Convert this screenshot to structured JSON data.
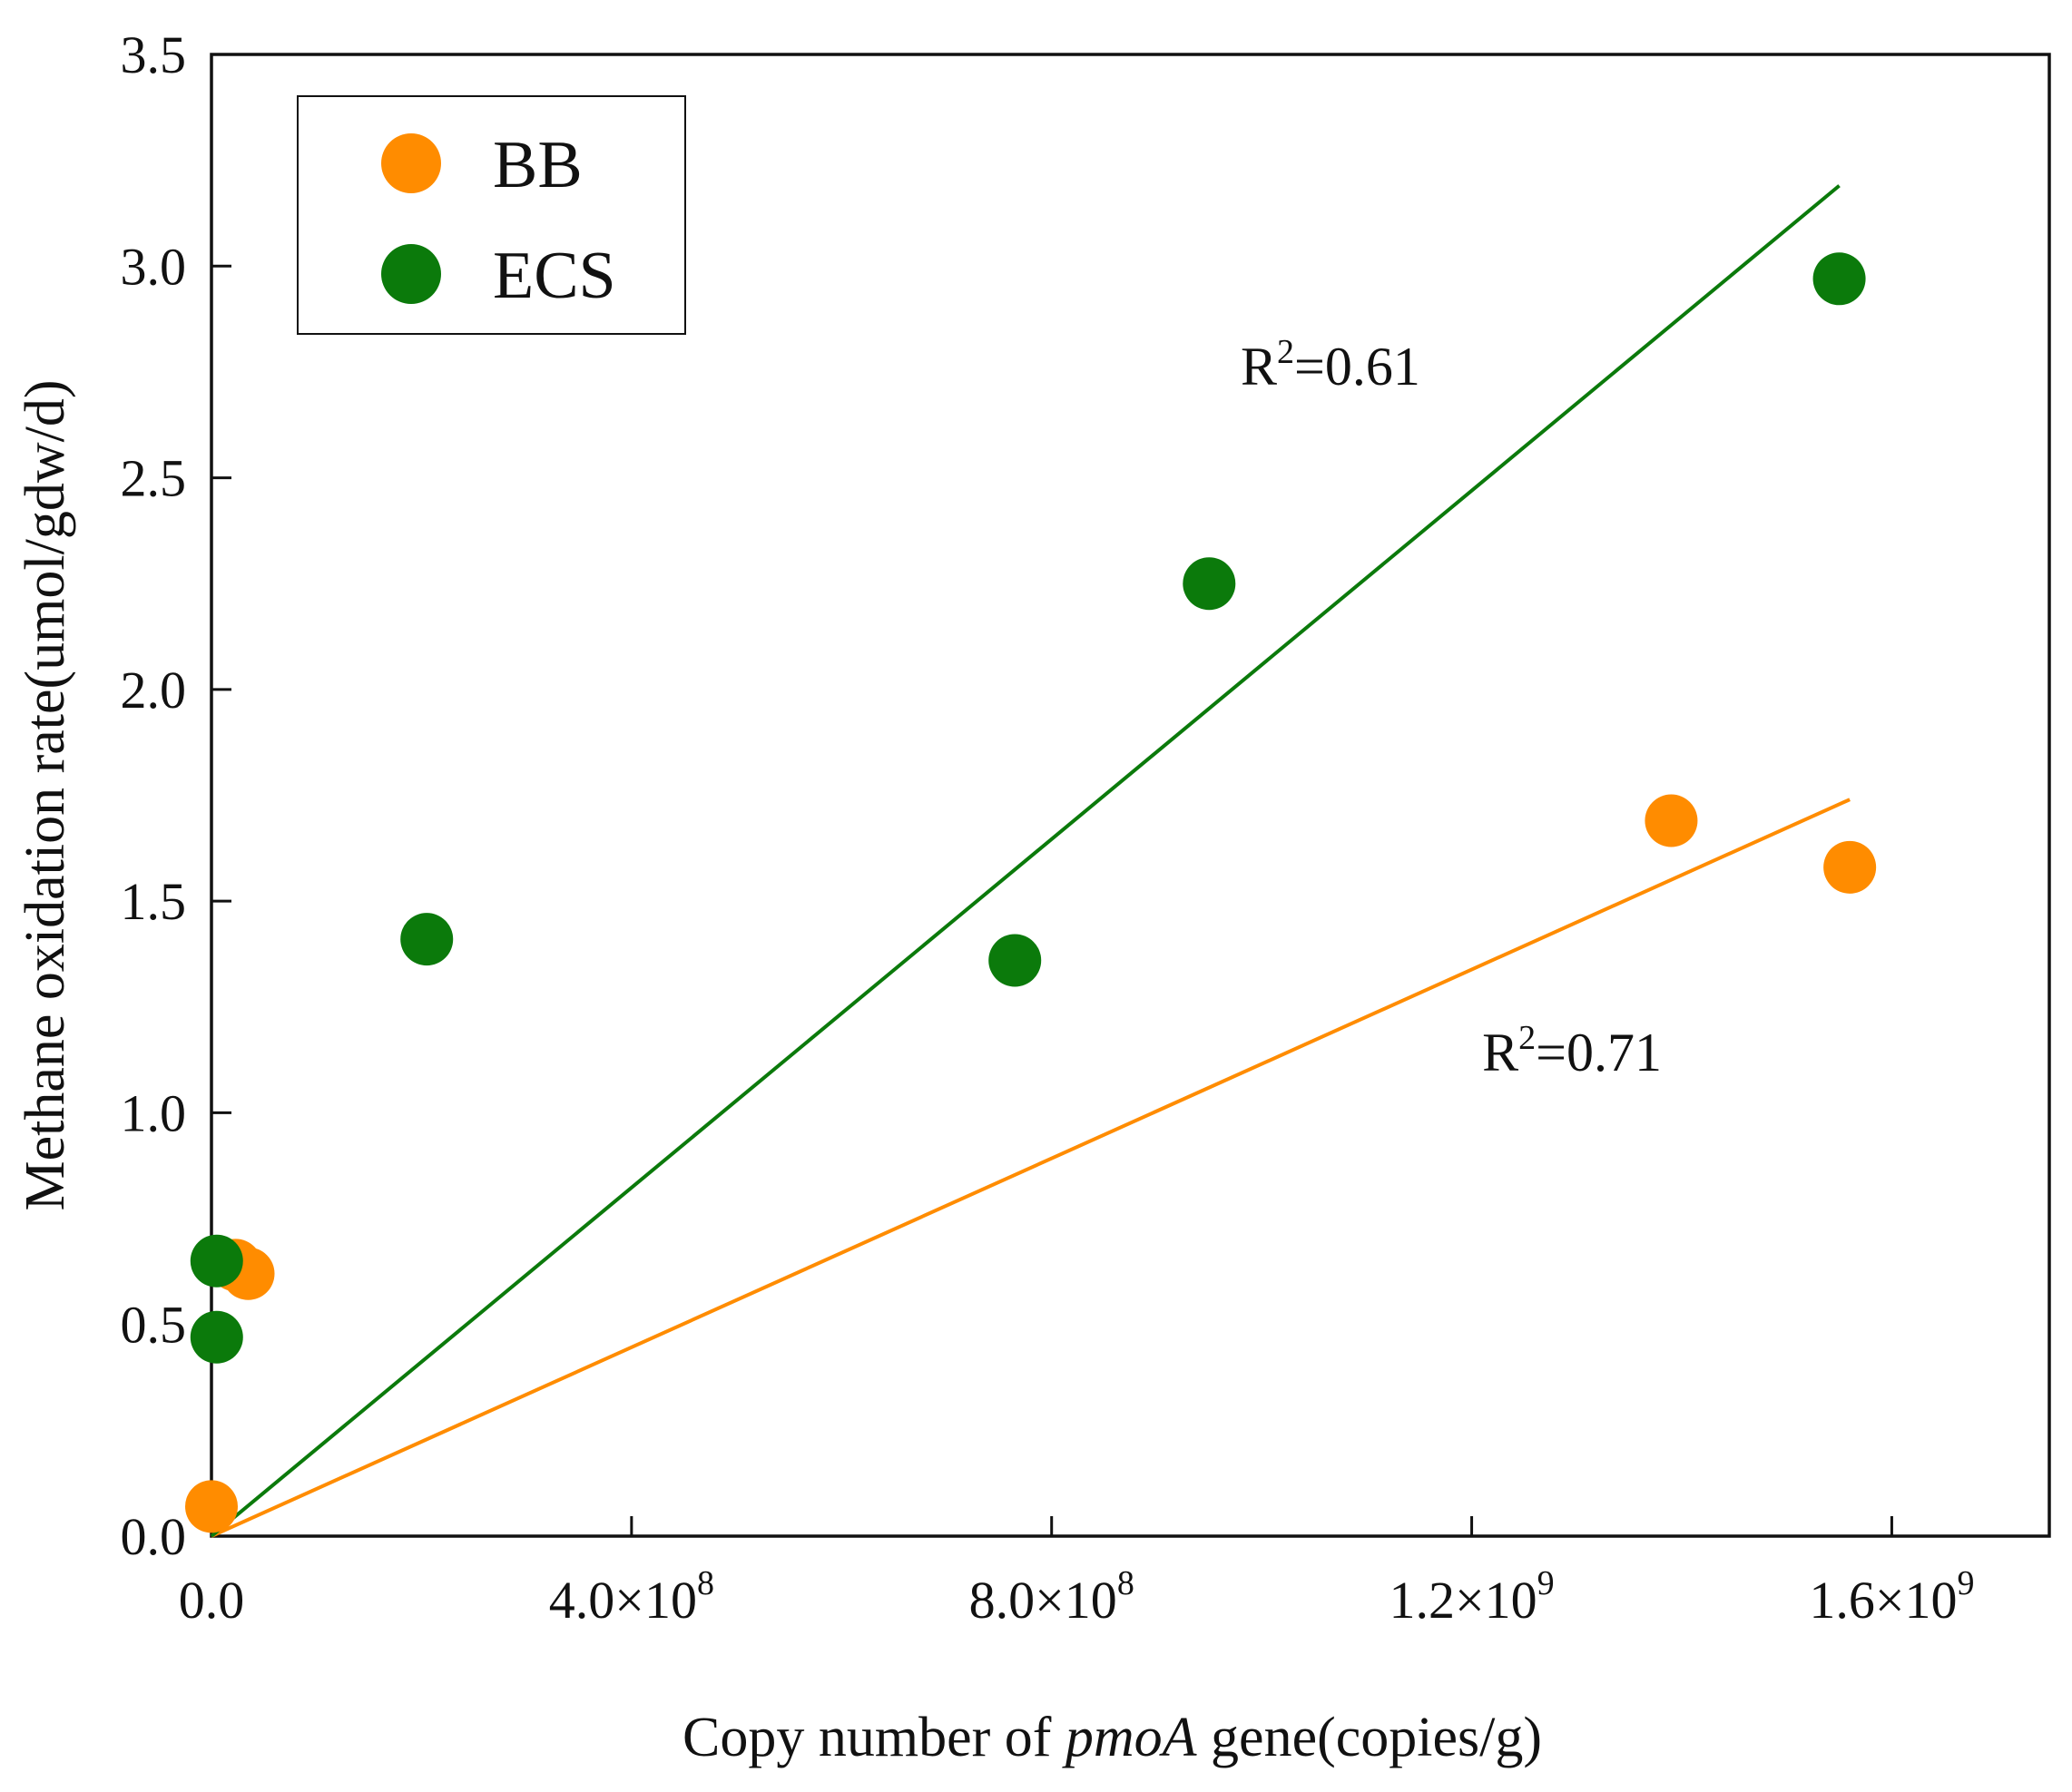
{
  "chart_data": {
    "type": "scatter",
    "title": "",
    "xlabel_prefix": "Copy number of ",
    "xlabel_gene": "pmoA",
    "xlabel_suffix": " gene(copies/g)",
    "ylabel": "Methane oxidation rate(umol/gdw/d)",
    "xlim": [
      0,
      1750000000
    ],
    "ylim": [
      0,
      3.5
    ],
    "grid": false,
    "legend_position": "top-left",
    "x_ticks": [
      {
        "value": 0,
        "mantissa": "0.0",
        "exponent": ""
      },
      {
        "value": 400000000,
        "mantissa": "4.0×10",
        "exponent": "8"
      },
      {
        "value": 800000000,
        "mantissa": "8.0×10",
        "exponent": "8"
      },
      {
        "value": 1200000000,
        "mantissa": "1.2×10",
        "exponent": "9"
      },
      {
        "value": 1600000000,
        "mantissa": "1.6×10",
        "exponent": "9"
      }
    ],
    "y_ticks": [
      {
        "value": 0.0,
        "label": "0.0"
      },
      {
        "value": 0.5,
        "label": "0.5"
      },
      {
        "value": 1.0,
        "label": "1.0"
      },
      {
        "value": 1.5,
        "label": "1.5"
      },
      {
        "value": 2.0,
        "label": "2.0"
      },
      {
        "value": 2.5,
        "label": "2.5"
      },
      {
        "value": 3.0,
        "label": "3.0"
      },
      {
        "value": 3.5,
        "label": "3.5"
      }
    ],
    "series": [
      {
        "name": "BB",
        "color": "#FF8C00",
        "points": [
          {
            "x": 0,
            "y": 0.07
          },
          {
            "x": 23000000,
            "y": 0.64
          },
          {
            "x": 35000000,
            "y": 0.62
          },
          {
            "x": 1390000000,
            "y": 1.69
          },
          {
            "x": 1560000000,
            "y": 1.58
          }
        ],
        "fit": {
          "x0": 0,
          "y0": 0.0,
          "x1": 1560000000,
          "y1": 1.74
        },
        "r2_base": "R",
        "r2_sup": "2",
        "r2_value": "=0.71",
        "r2_anchor": {
          "x": 1210000000,
          "y": 1.1
        }
      },
      {
        "name": "ECS",
        "color": "#0B7A0B",
        "points": [
          {
            "x": 5000000,
            "y": 0.65
          },
          {
            "x": 5000000,
            "y": 0.47
          },
          {
            "x": 205000000,
            "y": 1.41
          },
          {
            "x": 765000000,
            "y": 1.36
          },
          {
            "x": 950000000,
            "y": 2.25
          },
          {
            "x": 1550000000,
            "y": 2.97
          }
        ],
        "fit": {
          "x0": 0,
          "y0": 0.0,
          "x1": 1550000000,
          "y1": 3.19
        },
        "r2_base": "R",
        "r2_sup": "2",
        "r2_value": "=0.61",
        "r2_anchor": {
          "x": 980000000,
          "y": 2.72
        }
      }
    ]
  }
}
